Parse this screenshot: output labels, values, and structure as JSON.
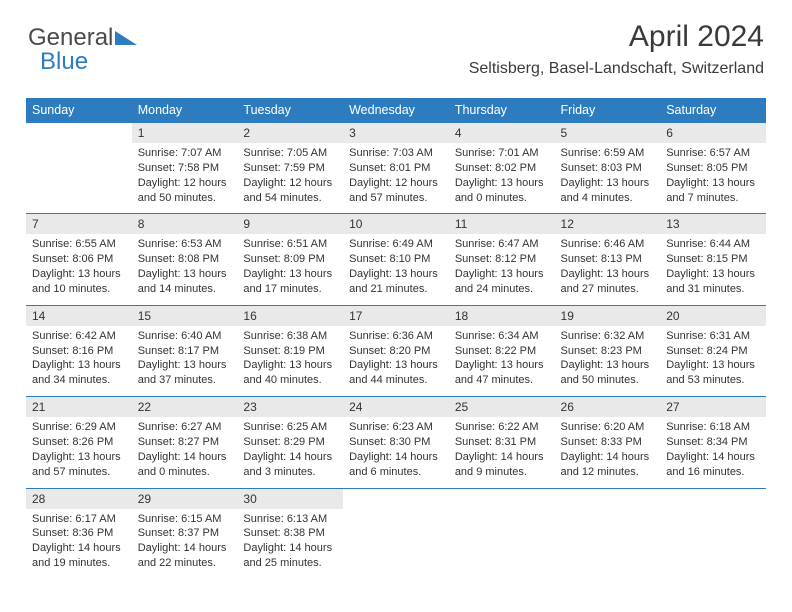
{
  "logo": {
    "part1": "General",
    "part2": "Blue"
  },
  "title": "April 2024",
  "location": "Seltisberg, Basel-Landschaft, Switzerland",
  "colors": {
    "header_bg": "#2e7cc0",
    "header_text": "#ffffff",
    "daynum_bg": "#e9e9e9",
    "border": "#2e7cc0",
    "page_bg": "#ffffff",
    "text": "#333333"
  },
  "typography": {
    "title_fontsize": 30,
    "location_fontsize": 16,
    "header_fontsize": 12.5,
    "body_fontsize": 11
  },
  "weekdays": [
    "Sunday",
    "Monday",
    "Tuesday",
    "Wednesday",
    "Thursday",
    "Friday",
    "Saturday"
  ],
  "weeks": [
    [
      {
        "empty": true
      },
      {
        "day": "1",
        "sunrise": "Sunrise: 7:07 AM",
        "sunset": "Sunset: 7:58 PM",
        "daylight1": "Daylight: 12 hours",
        "daylight2": "and 50 minutes."
      },
      {
        "day": "2",
        "sunrise": "Sunrise: 7:05 AM",
        "sunset": "Sunset: 7:59 PM",
        "daylight1": "Daylight: 12 hours",
        "daylight2": "and 54 minutes."
      },
      {
        "day": "3",
        "sunrise": "Sunrise: 7:03 AM",
        "sunset": "Sunset: 8:01 PM",
        "daylight1": "Daylight: 12 hours",
        "daylight2": "and 57 minutes."
      },
      {
        "day": "4",
        "sunrise": "Sunrise: 7:01 AM",
        "sunset": "Sunset: 8:02 PM",
        "daylight1": "Daylight: 13 hours",
        "daylight2": "and 0 minutes."
      },
      {
        "day": "5",
        "sunrise": "Sunrise: 6:59 AM",
        "sunset": "Sunset: 8:03 PM",
        "daylight1": "Daylight: 13 hours",
        "daylight2": "and 4 minutes."
      },
      {
        "day": "6",
        "sunrise": "Sunrise: 6:57 AM",
        "sunset": "Sunset: 8:05 PM",
        "daylight1": "Daylight: 13 hours",
        "daylight2": "and 7 minutes."
      }
    ],
    [
      {
        "day": "7",
        "sunrise": "Sunrise: 6:55 AM",
        "sunset": "Sunset: 8:06 PM",
        "daylight1": "Daylight: 13 hours",
        "daylight2": "and 10 minutes."
      },
      {
        "day": "8",
        "sunrise": "Sunrise: 6:53 AM",
        "sunset": "Sunset: 8:08 PM",
        "daylight1": "Daylight: 13 hours",
        "daylight2": "and 14 minutes."
      },
      {
        "day": "9",
        "sunrise": "Sunrise: 6:51 AM",
        "sunset": "Sunset: 8:09 PM",
        "daylight1": "Daylight: 13 hours",
        "daylight2": "and 17 minutes."
      },
      {
        "day": "10",
        "sunrise": "Sunrise: 6:49 AM",
        "sunset": "Sunset: 8:10 PM",
        "daylight1": "Daylight: 13 hours",
        "daylight2": "and 21 minutes."
      },
      {
        "day": "11",
        "sunrise": "Sunrise: 6:47 AM",
        "sunset": "Sunset: 8:12 PM",
        "daylight1": "Daylight: 13 hours",
        "daylight2": "and 24 minutes."
      },
      {
        "day": "12",
        "sunrise": "Sunrise: 6:46 AM",
        "sunset": "Sunset: 8:13 PM",
        "daylight1": "Daylight: 13 hours",
        "daylight2": "and 27 minutes."
      },
      {
        "day": "13",
        "sunrise": "Sunrise: 6:44 AM",
        "sunset": "Sunset: 8:15 PM",
        "daylight1": "Daylight: 13 hours",
        "daylight2": "and 31 minutes."
      }
    ],
    [
      {
        "day": "14",
        "sunrise": "Sunrise: 6:42 AM",
        "sunset": "Sunset: 8:16 PM",
        "daylight1": "Daylight: 13 hours",
        "daylight2": "and 34 minutes."
      },
      {
        "day": "15",
        "sunrise": "Sunrise: 6:40 AM",
        "sunset": "Sunset: 8:17 PM",
        "daylight1": "Daylight: 13 hours",
        "daylight2": "and 37 minutes."
      },
      {
        "day": "16",
        "sunrise": "Sunrise: 6:38 AM",
        "sunset": "Sunset: 8:19 PM",
        "daylight1": "Daylight: 13 hours",
        "daylight2": "and 40 minutes."
      },
      {
        "day": "17",
        "sunrise": "Sunrise: 6:36 AM",
        "sunset": "Sunset: 8:20 PM",
        "daylight1": "Daylight: 13 hours",
        "daylight2": "and 44 minutes."
      },
      {
        "day": "18",
        "sunrise": "Sunrise: 6:34 AM",
        "sunset": "Sunset: 8:22 PM",
        "daylight1": "Daylight: 13 hours",
        "daylight2": "and 47 minutes."
      },
      {
        "day": "19",
        "sunrise": "Sunrise: 6:32 AM",
        "sunset": "Sunset: 8:23 PM",
        "daylight1": "Daylight: 13 hours",
        "daylight2": "and 50 minutes."
      },
      {
        "day": "20",
        "sunrise": "Sunrise: 6:31 AM",
        "sunset": "Sunset: 8:24 PM",
        "daylight1": "Daylight: 13 hours",
        "daylight2": "and 53 minutes."
      }
    ],
    [
      {
        "day": "21",
        "sunrise": "Sunrise: 6:29 AM",
        "sunset": "Sunset: 8:26 PM",
        "daylight1": "Daylight: 13 hours",
        "daylight2": "and 57 minutes."
      },
      {
        "day": "22",
        "sunrise": "Sunrise: 6:27 AM",
        "sunset": "Sunset: 8:27 PM",
        "daylight1": "Daylight: 14 hours",
        "daylight2": "and 0 minutes."
      },
      {
        "day": "23",
        "sunrise": "Sunrise: 6:25 AM",
        "sunset": "Sunset: 8:29 PM",
        "daylight1": "Daylight: 14 hours",
        "daylight2": "and 3 minutes."
      },
      {
        "day": "24",
        "sunrise": "Sunrise: 6:23 AM",
        "sunset": "Sunset: 8:30 PM",
        "daylight1": "Daylight: 14 hours",
        "daylight2": "and 6 minutes."
      },
      {
        "day": "25",
        "sunrise": "Sunrise: 6:22 AM",
        "sunset": "Sunset: 8:31 PM",
        "daylight1": "Daylight: 14 hours",
        "daylight2": "and 9 minutes."
      },
      {
        "day": "26",
        "sunrise": "Sunrise: 6:20 AM",
        "sunset": "Sunset: 8:33 PM",
        "daylight1": "Daylight: 14 hours",
        "daylight2": "and 12 minutes."
      },
      {
        "day": "27",
        "sunrise": "Sunrise: 6:18 AM",
        "sunset": "Sunset: 8:34 PM",
        "daylight1": "Daylight: 14 hours",
        "daylight2": "and 16 minutes."
      }
    ],
    [
      {
        "day": "28",
        "sunrise": "Sunrise: 6:17 AM",
        "sunset": "Sunset: 8:36 PM",
        "daylight1": "Daylight: 14 hours",
        "daylight2": "and 19 minutes."
      },
      {
        "day": "29",
        "sunrise": "Sunrise: 6:15 AM",
        "sunset": "Sunset: 8:37 PM",
        "daylight1": "Daylight: 14 hours",
        "daylight2": "and 22 minutes."
      },
      {
        "day": "30",
        "sunrise": "Sunrise: 6:13 AM",
        "sunset": "Sunset: 8:38 PM",
        "daylight1": "Daylight: 14 hours",
        "daylight2": "and 25 minutes."
      },
      {
        "empty": true
      },
      {
        "empty": true
      },
      {
        "empty": true
      },
      {
        "empty": true
      }
    ]
  ]
}
